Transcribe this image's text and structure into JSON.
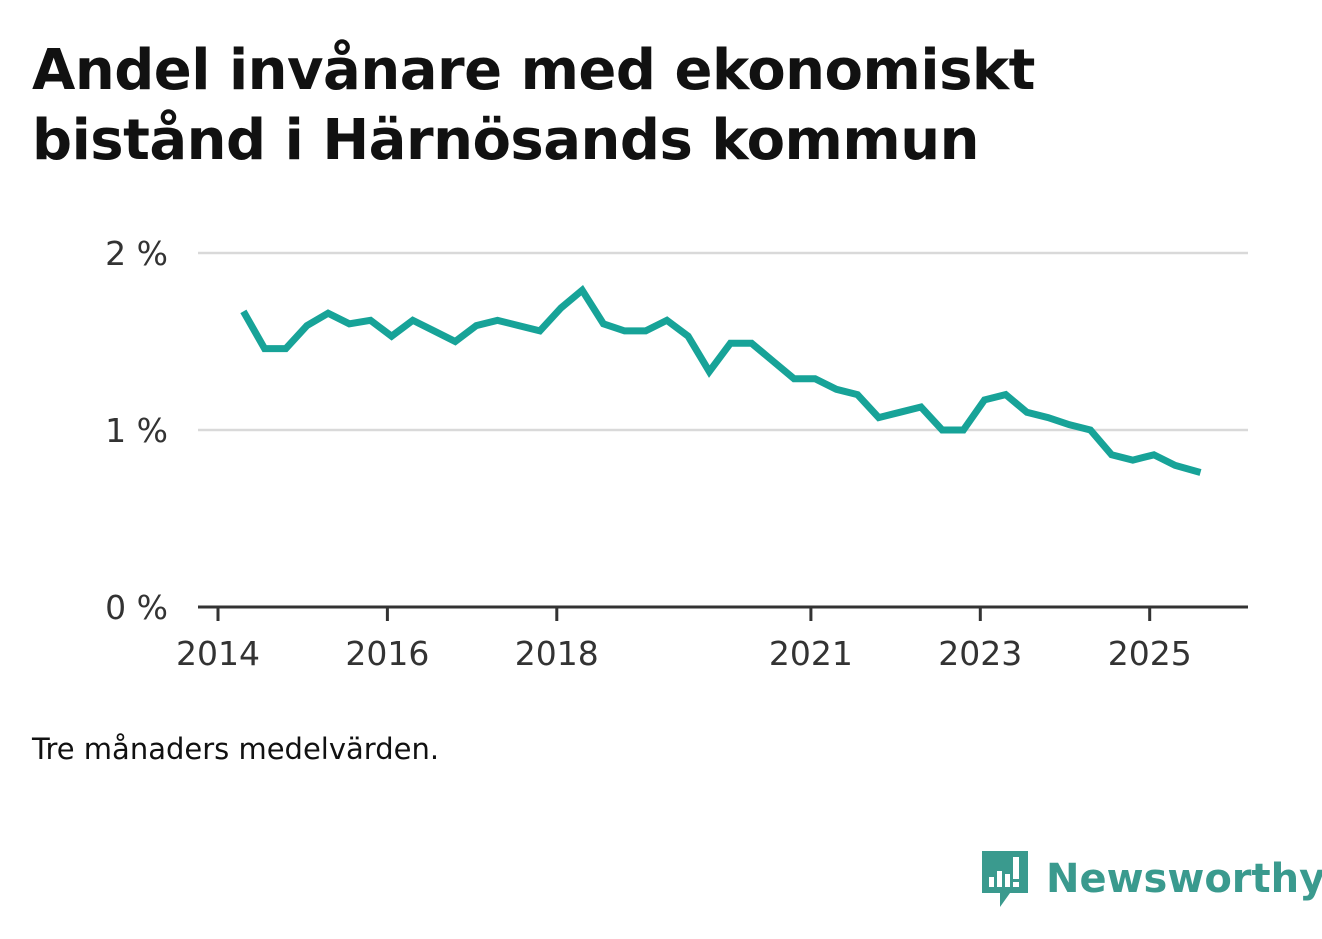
{
  "title": "Andel invånare med ekonomiskt bistånd i Härnösands kommun",
  "note": "Tre månaders medelvärden.",
  "brand": {
    "name": "Newsworthy",
    "icon": "newsworthy-logo-icon",
    "color": "#3a9a8e"
  },
  "colors": {
    "line": "#17a398",
    "grid": "#d9d9d9",
    "axis": "#333333"
  },
  "chart_data": {
    "type": "line",
    "title": "Andel invånare med ekonomiskt bistånd i Härnösands kommun",
    "xlabel": "",
    "ylabel": "",
    "ylim": [
      0,
      2
    ],
    "xlim": [
      2014,
      2025.6
    ],
    "y_ticks": [
      {
        "value": 0,
        "label": "0 %"
      },
      {
        "value": 1,
        "label": "1 %"
      },
      {
        "value": 2,
        "label": "2 %"
      }
    ],
    "x_ticks": [
      {
        "value": 2014,
        "label": "2014"
      },
      {
        "value": 2016,
        "label": "2016"
      },
      {
        "value": 2018,
        "label": "2018"
      },
      {
        "value": 2021,
        "label": "2021"
      },
      {
        "value": 2023,
        "label": "2023"
      },
      {
        "value": 2025,
        "label": "2025"
      }
    ],
    "grid": true,
    "series": [
      {
        "name": "Andel invånare med ekonomiskt bistånd",
        "x": [
          2014.3,
          2014.55,
          2014.8,
          2015.05,
          2015.3,
          2015.55,
          2015.8,
          2016.05,
          2016.3,
          2016.55,
          2016.8,
          2017.05,
          2017.3,
          2017.55,
          2017.8,
          2018.05,
          2018.3,
          2018.55,
          2018.8,
          2019.05,
          2019.3,
          2019.55,
          2019.8,
          2020.05,
          2020.3,
          2020.55,
          2020.8,
          2021.05,
          2021.3,
          2021.55,
          2021.8,
          2022.05,
          2022.3,
          2022.55,
          2022.8,
          2023.05,
          2023.3,
          2023.55,
          2023.8,
          2024.05,
          2024.3,
          2024.55,
          2024.8,
          2025.05,
          2025.3,
          2025.6
        ],
        "values": [
          1.67,
          1.46,
          1.46,
          1.59,
          1.66,
          1.6,
          1.62,
          1.53,
          1.62,
          1.56,
          1.5,
          1.59,
          1.62,
          1.59,
          1.56,
          1.69,
          1.79,
          1.6,
          1.56,
          1.56,
          1.62,
          1.53,
          1.33,
          1.49,
          1.49,
          1.39,
          1.29,
          1.29,
          1.23,
          1.2,
          1.07,
          1.1,
          1.13,
          1.0,
          1.0,
          1.17,
          1.2,
          1.1,
          1.07,
          1.03,
          1.0,
          0.86,
          0.83,
          0.86,
          0.8,
          0.76
        ]
      }
    ]
  }
}
